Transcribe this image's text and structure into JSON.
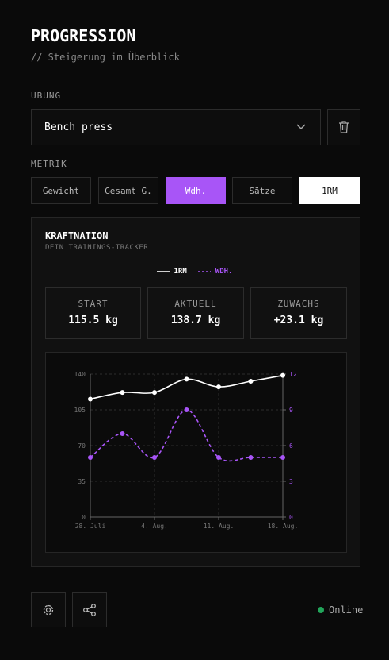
{
  "header": {
    "title": "PROGRESSION",
    "subtitle": "// Steigerung im Überblick"
  },
  "exercise": {
    "label": "ÜBUNG",
    "selected": "Bench press"
  },
  "metric": {
    "label": "METRIK",
    "options": [
      "Gewicht",
      "Gesamt G.",
      "Wdh.",
      "Sätze",
      "1RM"
    ]
  },
  "card": {
    "brand": "KRAFTNATION",
    "tagline": "DEIN TRAININGS-TRACKER",
    "stats": [
      {
        "label": "START",
        "value": "115.5 kg"
      },
      {
        "label": "AKTUELL",
        "value": "138.7 kg"
      },
      {
        "label": "ZUWACHS",
        "value": "+23.1 kg"
      }
    ]
  },
  "chart_data": {
    "type": "line",
    "categories": [
      "28. Juli",
      null,
      "4. Aug.",
      null,
      "11. Aug.",
      null,
      "18. Aug."
    ],
    "series": [
      {
        "name": "1RM",
        "color": "#ffffff",
        "values": [
          115.5,
          122,
          122,
          135,
          127.5,
          133,
          138.7
        ]
      },
      {
        "name": "WDH.",
        "color": "#a855f7",
        "axis": "y2",
        "dashed": true,
        "values": [
          5,
          7,
          5,
          9,
          5,
          5,
          5
        ]
      }
    ],
    "ylim": [
      0,
      140
    ],
    "yticks": [
      0,
      35,
      70,
      105,
      140
    ],
    "y2lim": [
      0,
      12
    ],
    "y2ticks": [
      0,
      3,
      6,
      9,
      12
    ],
    "grid": true
  },
  "footer": {
    "status": "Online"
  }
}
